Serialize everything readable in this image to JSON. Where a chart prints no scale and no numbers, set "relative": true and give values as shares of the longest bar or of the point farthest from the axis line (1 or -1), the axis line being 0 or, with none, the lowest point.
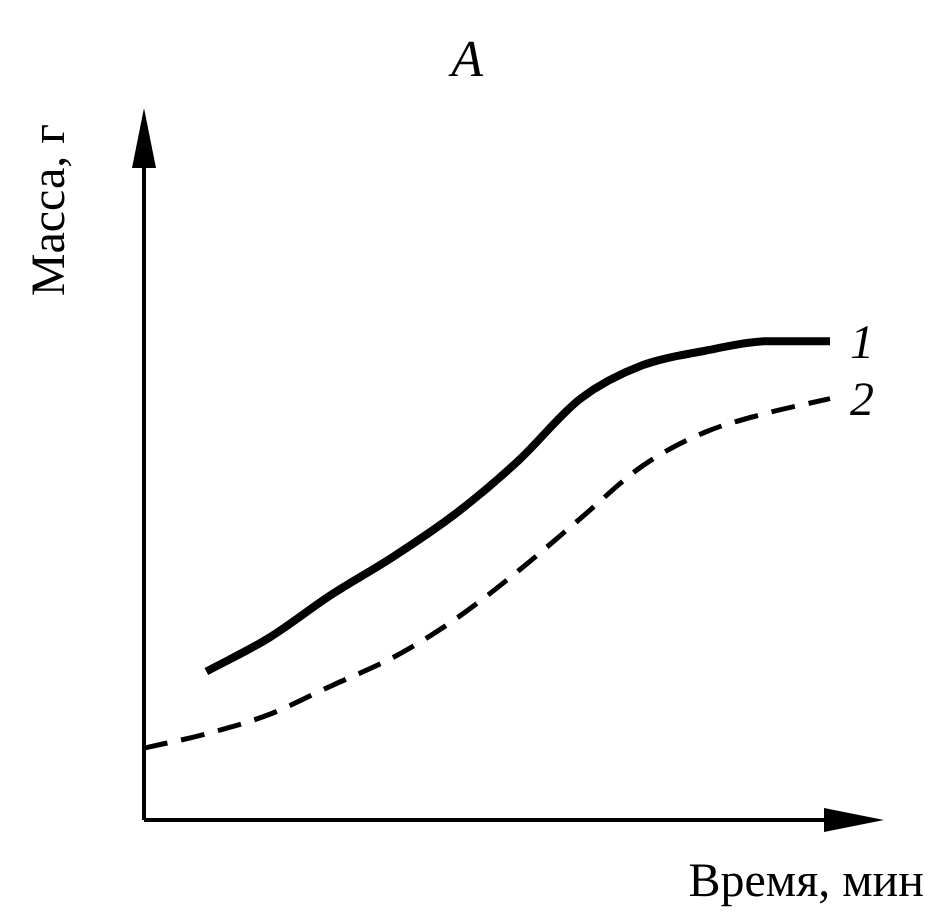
{
  "chart_data": {
    "type": "line",
    "title": "A",
    "xlabel": "Время, мин",
    "ylabel": "Масса, г",
    "relative": true,
    "tick_labels": false,
    "marker": "none",
    "categories": [
      null,
      null,
      null,
      null,
      null,
      null,
      null,
      null,
      null,
      null,
      null,
      null
    ],
    "series": [
      {
        "name": "1",
        "color": "#000000",
        "line_style": "solid",
        "values": [
          null,
          0.31,
          0.38,
          0.47,
          0.55,
          0.64,
          0.75,
          0.88,
          0.95,
          0.98,
          1,
          1
        ]
      },
      {
        "name": "2",
        "color": "#000000",
        "line_style": "dashed",
        "values": [
          0.15,
          0.18,
          0.22,
          0.28,
          0.34,
          0.42,
          0.52,
          0.63,
          0.74,
          0.81,
          0.85,
          0.88
        ]
      }
    ]
  }
}
